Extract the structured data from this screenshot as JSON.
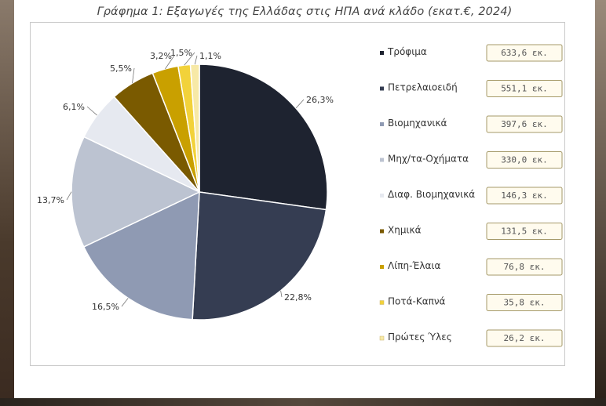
{
  "chart_data": {
    "type": "pie",
    "title": "Γράφημα 1: Εξαγωγές της Ελλάδας στις ΗΠΑ ανά κλάδο (εκατ.€, 2024)",
    "categories": [
      "Τρόφιμα",
      "Πετρελαιοειδή",
      "Βιομηχανικά",
      "Μηχ/τα-Οχήματα",
      "Διαφ. Βιομηχανικά",
      "Χημικά",
      "Λίπη-Έλαια",
      "Ποτά-Καπνά",
      "Πρώτες Ύλες"
    ],
    "values": [
      633.6,
      551.1,
      397.6,
      330.0,
      146.3,
      131.5,
      76.8,
      35.8,
      26.2
    ],
    "value_labels": [
      "633,6 εκ.",
      "551,1 εκ.",
      "397,6 εκ.",
      "330,0 εκ.",
      "146,3 εκ.",
      "131,5 εκ.",
      "76,8 εκ.",
      "35,8 εκ.",
      "26,2 εκ."
    ],
    "percent_labels": [
      "26,3%",
      "22,8%",
      "16,5%",
      "13,7%",
      "6,1%",
      "5,5%",
      "3,2%",
      "1,5%",
      "1,1%"
    ],
    "colors": [
      "#1e2330",
      "#353d52",
      "#8f9ab3",
      "#bcc3d1",
      "#e6e9f0",
      "#7a5a00",
      "#c9a000",
      "#f2d23a",
      "#f7e9a6"
    ],
    "legend_position": "right"
  }
}
